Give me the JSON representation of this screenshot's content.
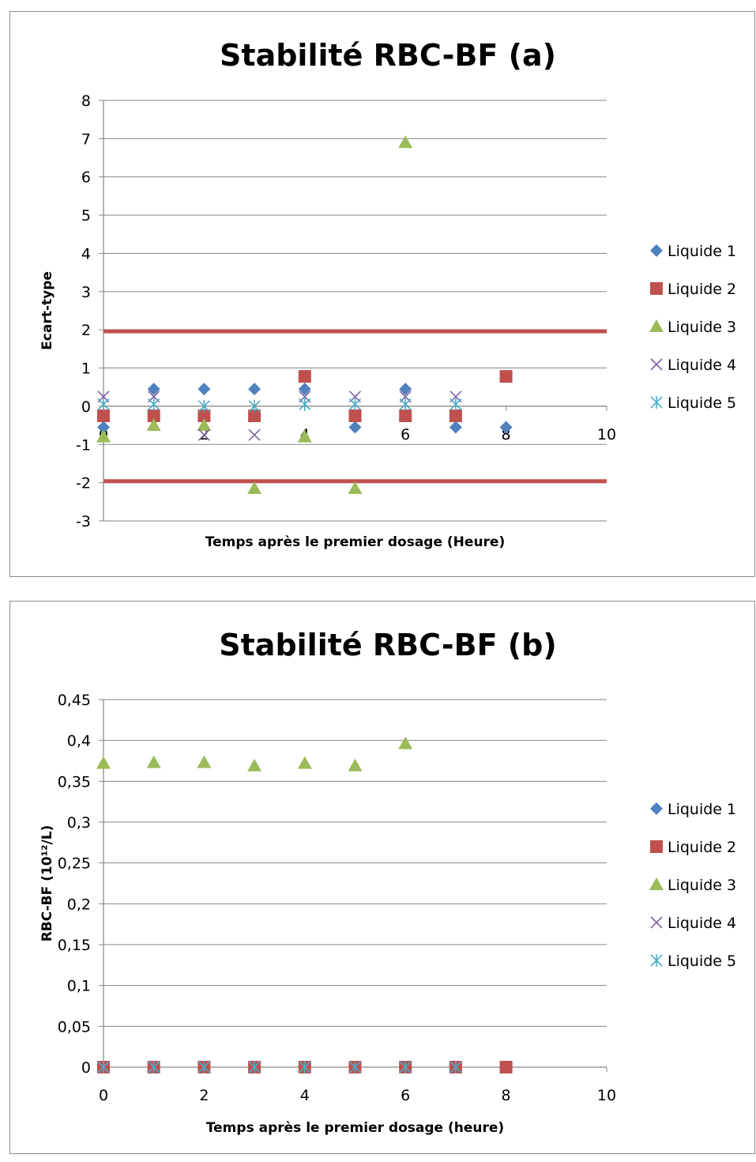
{
  "chart_data": [
    {
      "type": "scatter",
      "title": "Stabilité RBC-BF (a)",
      "xlabel": "Temps après le premier dosage (Heure)",
      "ylabel": "Ecart-type",
      "xlim": [
        0,
        10
      ],
      "ylim": [
        -3,
        8
      ],
      "xticks": [
        0,
        2,
        4,
        6,
        8,
        10
      ],
      "yticks": [
        -3,
        -2,
        -1,
        0,
        1,
        2,
        3,
        4,
        5,
        6,
        7,
        8
      ],
      "xtick_labels": [
        "0",
        "2",
        "4",
        "6",
        "8",
        "10"
      ],
      "ytick_labels": [
        "-3",
        "-2",
        "-1",
        "0",
        "1",
        "2",
        "3",
        "4",
        "5",
        "6",
        "7",
        "8"
      ],
      "grid": true,
      "legend": "right",
      "reference_lines": [
        {
          "y": 1.96,
          "color": "#c0504d"
        },
        {
          "y": -1.96,
          "color": "#c0504d"
        }
      ],
      "series": [
        {
          "name": "Liquide 1",
          "marker": "diamond",
          "color": "#4f81bd",
          "points": [
            [
              0,
              -0.55
            ],
            [
              1,
              0.45
            ],
            [
              2,
              0.45
            ],
            [
              3,
              0.45
            ],
            [
              4,
              0.45
            ],
            [
              5,
              -0.55
            ],
            [
              6,
              0.45
            ],
            [
              7,
              -0.55
            ],
            [
              8,
              -0.55
            ]
          ]
        },
        {
          "name": "Liquide 2",
          "marker": "square",
          "color": "#c0504d",
          "points": [
            [
              0,
              -0.25
            ],
            [
              1,
              -0.25
            ],
            [
              2,
              -0.25
            ],
            [
              3,
              -0.25
            ],
            [
              4,
              0.78
            ],
            [
              5,
              -0.25
            ],
            [
              6,
              -0.25
            ],
            [
              7,
              -0.25
            ],
            [
              8,
              0.78
            ]
          ]
        },
        {
          "name": "Liquide 3",
          "marker": "triangle",
          "color": "#9bbb59",
          "points": [
            [
              0,
              -0.8
            ],
            [
              1,
              -0.5
            ],
            [
              2,
              -0.5
            ],
            [
              3,
              -2.15
            ],
            [
              4,
              -0.8
            ],
            [
              5,
              -2.15
            ],
            [
              6,
              6.9
            ]
          ]
        },
        {
          "name": "Liquide 4",
          "marker": "x",
          "color": "#8064a2",
          "points": [
            [
              0,
              0.25
            ],
            [
              1,
              0.25
            ],
            [
              2,
              -0.75
            ],
            [
              3,
              -0.75
            ],
            [
              4,
              0.25
            ],
            [
              5,
              0.25
            ],
            [
              6,
              0.25
            ],
            [
              7,
              0.25
            ]
          ]
        },
        {
          "name": "Liquide 5",
          "marker": "star",
          "color": "#4bacc6",
          "points": [
            [
              0,
              0.05
            ],
            [
              1,
              0.05
            ],
            [
              2,
              0.0
            ],
            [
              3,
              0.0
            ],
            [
              4,
              0.05
            ],
            [
              5,
              0.05
            ],
            [
              6,
              0.05
            ],
            [
              7,
              0.05
            ]
          ]
        }
      ]
    },
    {
      "type": "scatter",
      "title": "Stabilité RBC-BF (b)",
      "xlabel": "Temps après le premier dosage (heure)",
      "ylabel": "RBC-BF (10¹²/L)",
      "xlim": [
        0,
        10
      ],
      "ylim": [
        0,
        0.45
      ],
      "xticks": [
        0,
        2,
        4,
        6,
        8,
        10
      ],
      "yticks": [
        0,
        0.05,
        0.1,
        0.15,
        0.2,
        0.25,
        0.3,
        0.35,
        0.4,
        0.45
      ],
      "xtick_labels": [
        "0",
        "2",
        "4",
        "6",
        "8",
        "10"
      ],
      "ytick_labels": [
        "0",
        "0,05",
        "0,1",
        "0,15",
        "0,2",
        "0,25",
        "0,3",
        "0,35",
        "0,4",
        "0,45"
      ],
      "grid": true,
      "legend": "right",
      "series": [
        {
          "name": "Liquide 1",
          "marker": "diamond",
          "color": "#4f81bd",
          "points": [
            [
              0,
              0
            ],
            [
              1,
              0
            ],
            [
              2,
              0
            ],
            [
              3,
              0
            ],
            [
              4,
              0
            ],
            [
              5,
              0
            ],
            [
              6,
              0
            ],
            [
              7,
              0
            ],
            [
              8,
              0
            ]
          ]
        },
        {
          "name": "Liquide 2",
          "marker": "square",
          "color": "#c0504d",
          "points": [
            [
              0,
              0
            ],
            [
              1,
              0
            ],
            [
              2,
              0
            ],
            [
              3,
              0
            ],
            [
              4,
              0
            ],
            [
              5,
              0
            ],
            [
              6,
              0
            ],
            [
              7,
              0
            ],
            [
              8,
              0
            ]
          ]
        },
        {
          "name": "Liquide 3",
          "marker": "triangle",
          "color": "#9bbb59",
          "points": [
            [
              0,
              0.372
            ],
            [
              1,
              0.373
            ],
            [
              2,
              0.373
            ],
            [
              3,
              0.369
            ],
            [
              4,
              0.372
            ],
            [
              5,
              0.369
            ],
            [
              6,
              0.396
            ]
          ]
        },
        {
          "name": "Liquide 4",
          "marker": "x",
          "color": "#8064a2",
          "points": [
            [
              0,
              0
            ],
            [
              1,
              0
            ],
            [
              2,
              0
            ],
            [
              3,
              0
            ],
            [
              4,
              0
            ],
            [
              5,
              0
            ],
            [
              6,
              0
            ],
            [
              7,
              0
            ]
          ]
        },
        {
          "name": "Liquide 5",
          "marker": "star",
          "color": "#4bacc6",
          "points": [
            [
              0,
              0
            ],
            [
              1,
              0
            ],
            [
              2,
              0
            ],
            [
              3,
              0
            ],
            [
              4,
              0
            ],
            [
              5,
              0
            ],
            [
              6,
              0
            ],
            [
              7,
              0
            ]
          ]
        }
      ]
    }
  ]
}
